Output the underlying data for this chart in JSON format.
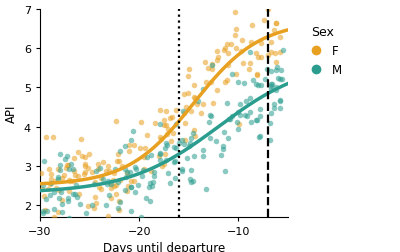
{
  "xlabel": "Days until departure",
  "ylabel": "API",
  "xlim": [
    -30,
    -5
  ],
  "ylim": [
    1.7,
    6.8
  ],
  "yticks": [
    2,
    3,
    4,
    5,
    6,
    7
  ],
  "xticks": [
    -30,
    -20,
    -10
  ],
  "color_F": "#E8A020",
  "color_M": "#2A9D8F",
  "alpha_scatter": 0.55,
  "scatter_size": 16,
  "line_width": 2.5,
  "vline_dotted_x": -16.0,
  "vline_dashed_x": -7.0,
  "legend_title": "Sex",
  "legend_labels": [
    "F",
    "M"
  ],
  "background_color": "#FFFFFF",
  "seed": 42,
  "n_F": 180,
  "n_M": 180,
  "F_L": 4.2,
  "F_k": 0.3,
  "F_x0": -14.5,
  "F_b": 2.5,
  "M_L": 3.4,
  "M_k": 0.22,
  "M_x0": -12.0,
  "M_b": 2.3,
  "noise_std": 0.55
}
